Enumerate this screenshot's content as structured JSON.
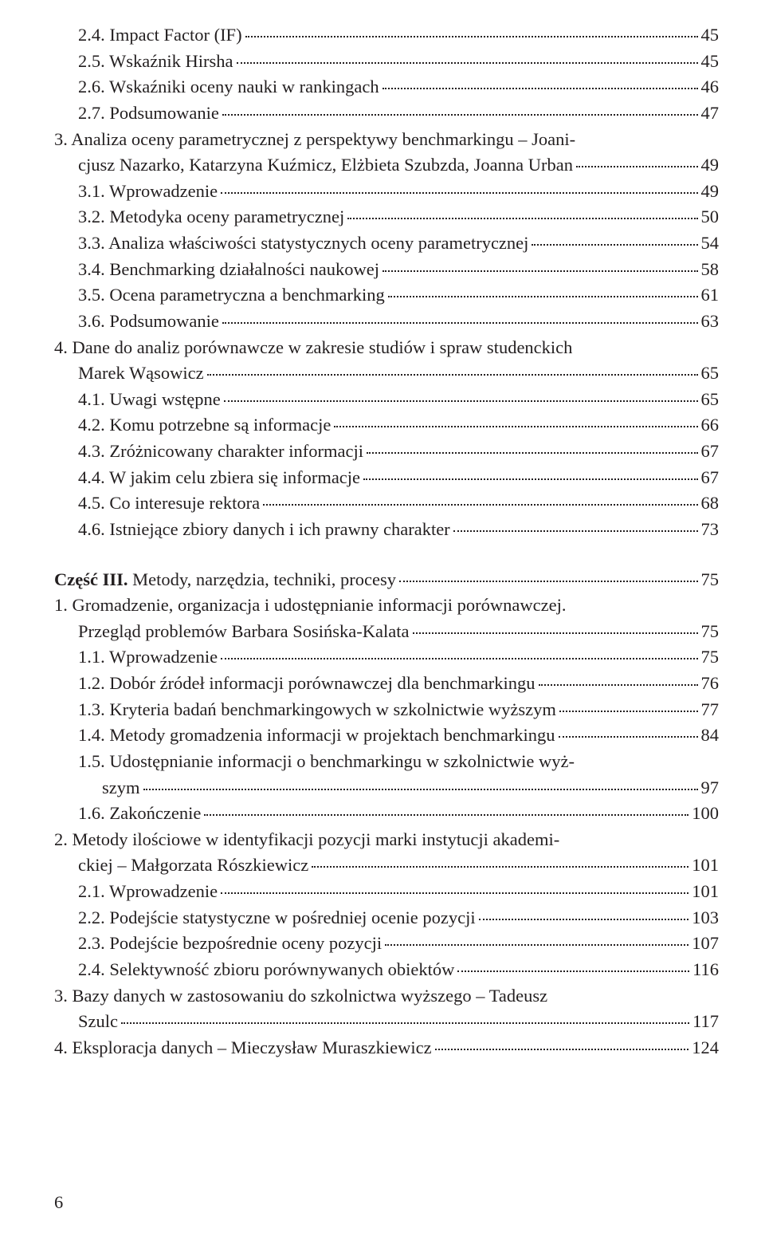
{
  "page_number": "6",
  "entries": [
    {
      "id": "e01",
      "text": "2.4. Impact Factor (IF)",
      "page": "45",
      "indent": 1
    },
    {
      "id": "e02",
      "text": "2.5. Wskaźnik Hirsha",
      "page": "45",
      "indent": 1
    },
    {
      "id": "e03",
      "text": "2.6. Wskaźniki oceny nauki w rankingach",
      "page": "46",
      "indent": 1
    },
    {
      "id": "e04",
      "text": "2.7. Podsumowanie",
      "page": "47",
      "indent": 1
    },
    {
      "id": "e05a",
      "text": "3. Analiza oceny parametrycznej z perspektywy benchmarkingu – Joani-",
      "indent": 0,
      "noPage": true
    },
    {
      "id": "e05b",
      "text": "cjusz Nazarko, Katarzyna Kuźmicz, Elżbieta Szubzda, Joanna Urban",
      "page": "49",
      "indent": 1
    },
    {
      "id": "e06",
      "text": "3.1. Wprowadzenie",
      "page": "49",
      "indent": 1
    },
    {
      "id": "e07",
      "text": "3.2. Metodyka oceny parametrycznej",
      "page": "50",
      "indent": 1
    },
    {
      "id": "e08",
      "text": "3.3. Analiza właściwości statystycznych oceny parametrycznej",
      "page": "54",
      "indent": 1
    },
    {
      "id": "e09",
      "text": "3.4. Benchmarking działalności naukowej",
      "page": "58",
      "indent": 1
    },
    {
      "id": "e10",
      "text": "3.5. Ocena parametryczna a benchmarking",
      "page": "61",
      "indent": 1
    },
    {
      "id": "e11",
      "text": "3.6. Podsumowanie",
      "page": "63",
      "indent": 1
    },
    {
      "id": "e12a",
      "text": "4. Dane do analiz porównawcze w zakresie studiów i spraw studenckich",
      "indent": 0,
      "noPage": true
    },
    {
      "id": "e12b",
      "text": "Marek Wąsowicz",
      "page": "65",
      "indent": 1
    },
    {
      "id": "e13",
      "text": "4.1. Uwagi wstępne",
      "page": "65",
      "indent": 1
    },
    {
      "id": "e14",
      "text": "4.2. Komu potrzebne są informacje",
      "page": "66",
      "indent": 1
    },
    {
      "id": "e15",
      "text": "4.3. Zróżnicowany charakter informacji",
      "page": "67",
      "indent": 1
    },
    {
      "id": "e16",
      "text": "4.4. W jakim celu zbiera się informacje",
      "page": "67",
      "indent": 1
    },
    {
      "id": "e17",
      "text": "4.5. Co interesuje rektora",
      "page": "68",
      "indent": 1
    },
    {
      "id": "e18",
      "text": "4.6. Istniejące zbiory danych i ich prawny charakter",
      "page": "73",
      "indent": 1
    },
    {
      "id": "gap1",
      "gap": true
    },
    {
      "id": "e19",
      "textParts": [
        {
          "t": "Część III.",
          "bold": true
        },
        {
          "t": " Metody, narzędzia, techniki, procesy"
        }
      ],
      "page": "75",
      "indent": 0
    },
    {
      "id": "e20a",
      "text": "1. Gromadzenie, organizacja i udostępnianie informacji porównawczej.",
      "indent": 0,
      "noPage": true
    },
    {
      "id": "e20b",
      "text": "Przegląd problemów Barbara Sosińska-Kalata",
      "page": "75",
      "indent": 1
    },
    {
      "id": "e21",
      "text": "1.1. Wprowadzenie",
      "page": "75",
      "indent": 1
    },
    {
      "id": "e22",
      "text": "1.2. Dobór źródeł informacji porównawczej dla benchmarkingu",
      "page": "76",
      "indent": 1
    },
    {
      "id": "e23",
      "text": "1.3. Kryteria badań benchmarkingowych w szkolnictwie wyższym",
      "page": "77",
      "indent": 1
    },
    {
      "id": "e24",
      "text": "1.4. Metody gromadzenia informacji w projektach benchmarkingu",
      "page": "84",
      "indent": 1
    },
    {
      "id": "e25a",
      "text": "1.5. Udostępnianie informacji o benchmarkingu w szkolnictwie wyż-",
      "indent": 1,
      "noPage": true
    },
    {
      "id": "e25b",
      "text": "szym",
      "page": " 97",
      "indent": 2
    },
    {
      "id": "e26",
      "text": "1.6. Zakończenie",
      "page": "100",
      "indent": 1
    },
    {
      "id": "e27a",
      "text": "2. Metody ilościowe w identyfikacji pozycji marki instytucji akademi-",
      "indent": 0,
      "noPage": true
    },
    {
      "id": "e27b",
      "text": "ckiej – Małgorzata Rószkiewicz",
      "page": "101",
      "indent": 1
    },
    {
      "id": "e28",
      "text": "2.1. Wprowadzenie",
      "page": "101",
      "indent": 1
    },
    {
      "id": "e29",
      "text": "2.2. Podejście statystyczne w pośredniej ocenie pozycji",
      "page": "103",
      "indent": 1
    },
    {
      "id": "e30",
      "text": "2.3. Podejście bezpośrednie oceny pozycji",
      "page": "107",
      "indent": 1
    },
    {
      "id": "e31",
      "text": "2.4. Selektywność zbioru porównywanych obiektów",
      "page": "116",
      "indent": 1
    },
    {
      "id": "e32a",
      "text": "3. Bazy danych w zastosowaniu do szkolnictwa wyższego – Tadeusz",
      "indent": 0,
      "noPage": true
    },
    {
      "id": "e32b",
      "text": "Szulc",
      "page": "117",
      "indent": 1
    },
    {
      "id": "e33",
      "text": "4. Eksploracja danych – Mieczysław Muraszkiewicz",
      "page": "124",
      "indent": 0
    }
  ]
}
